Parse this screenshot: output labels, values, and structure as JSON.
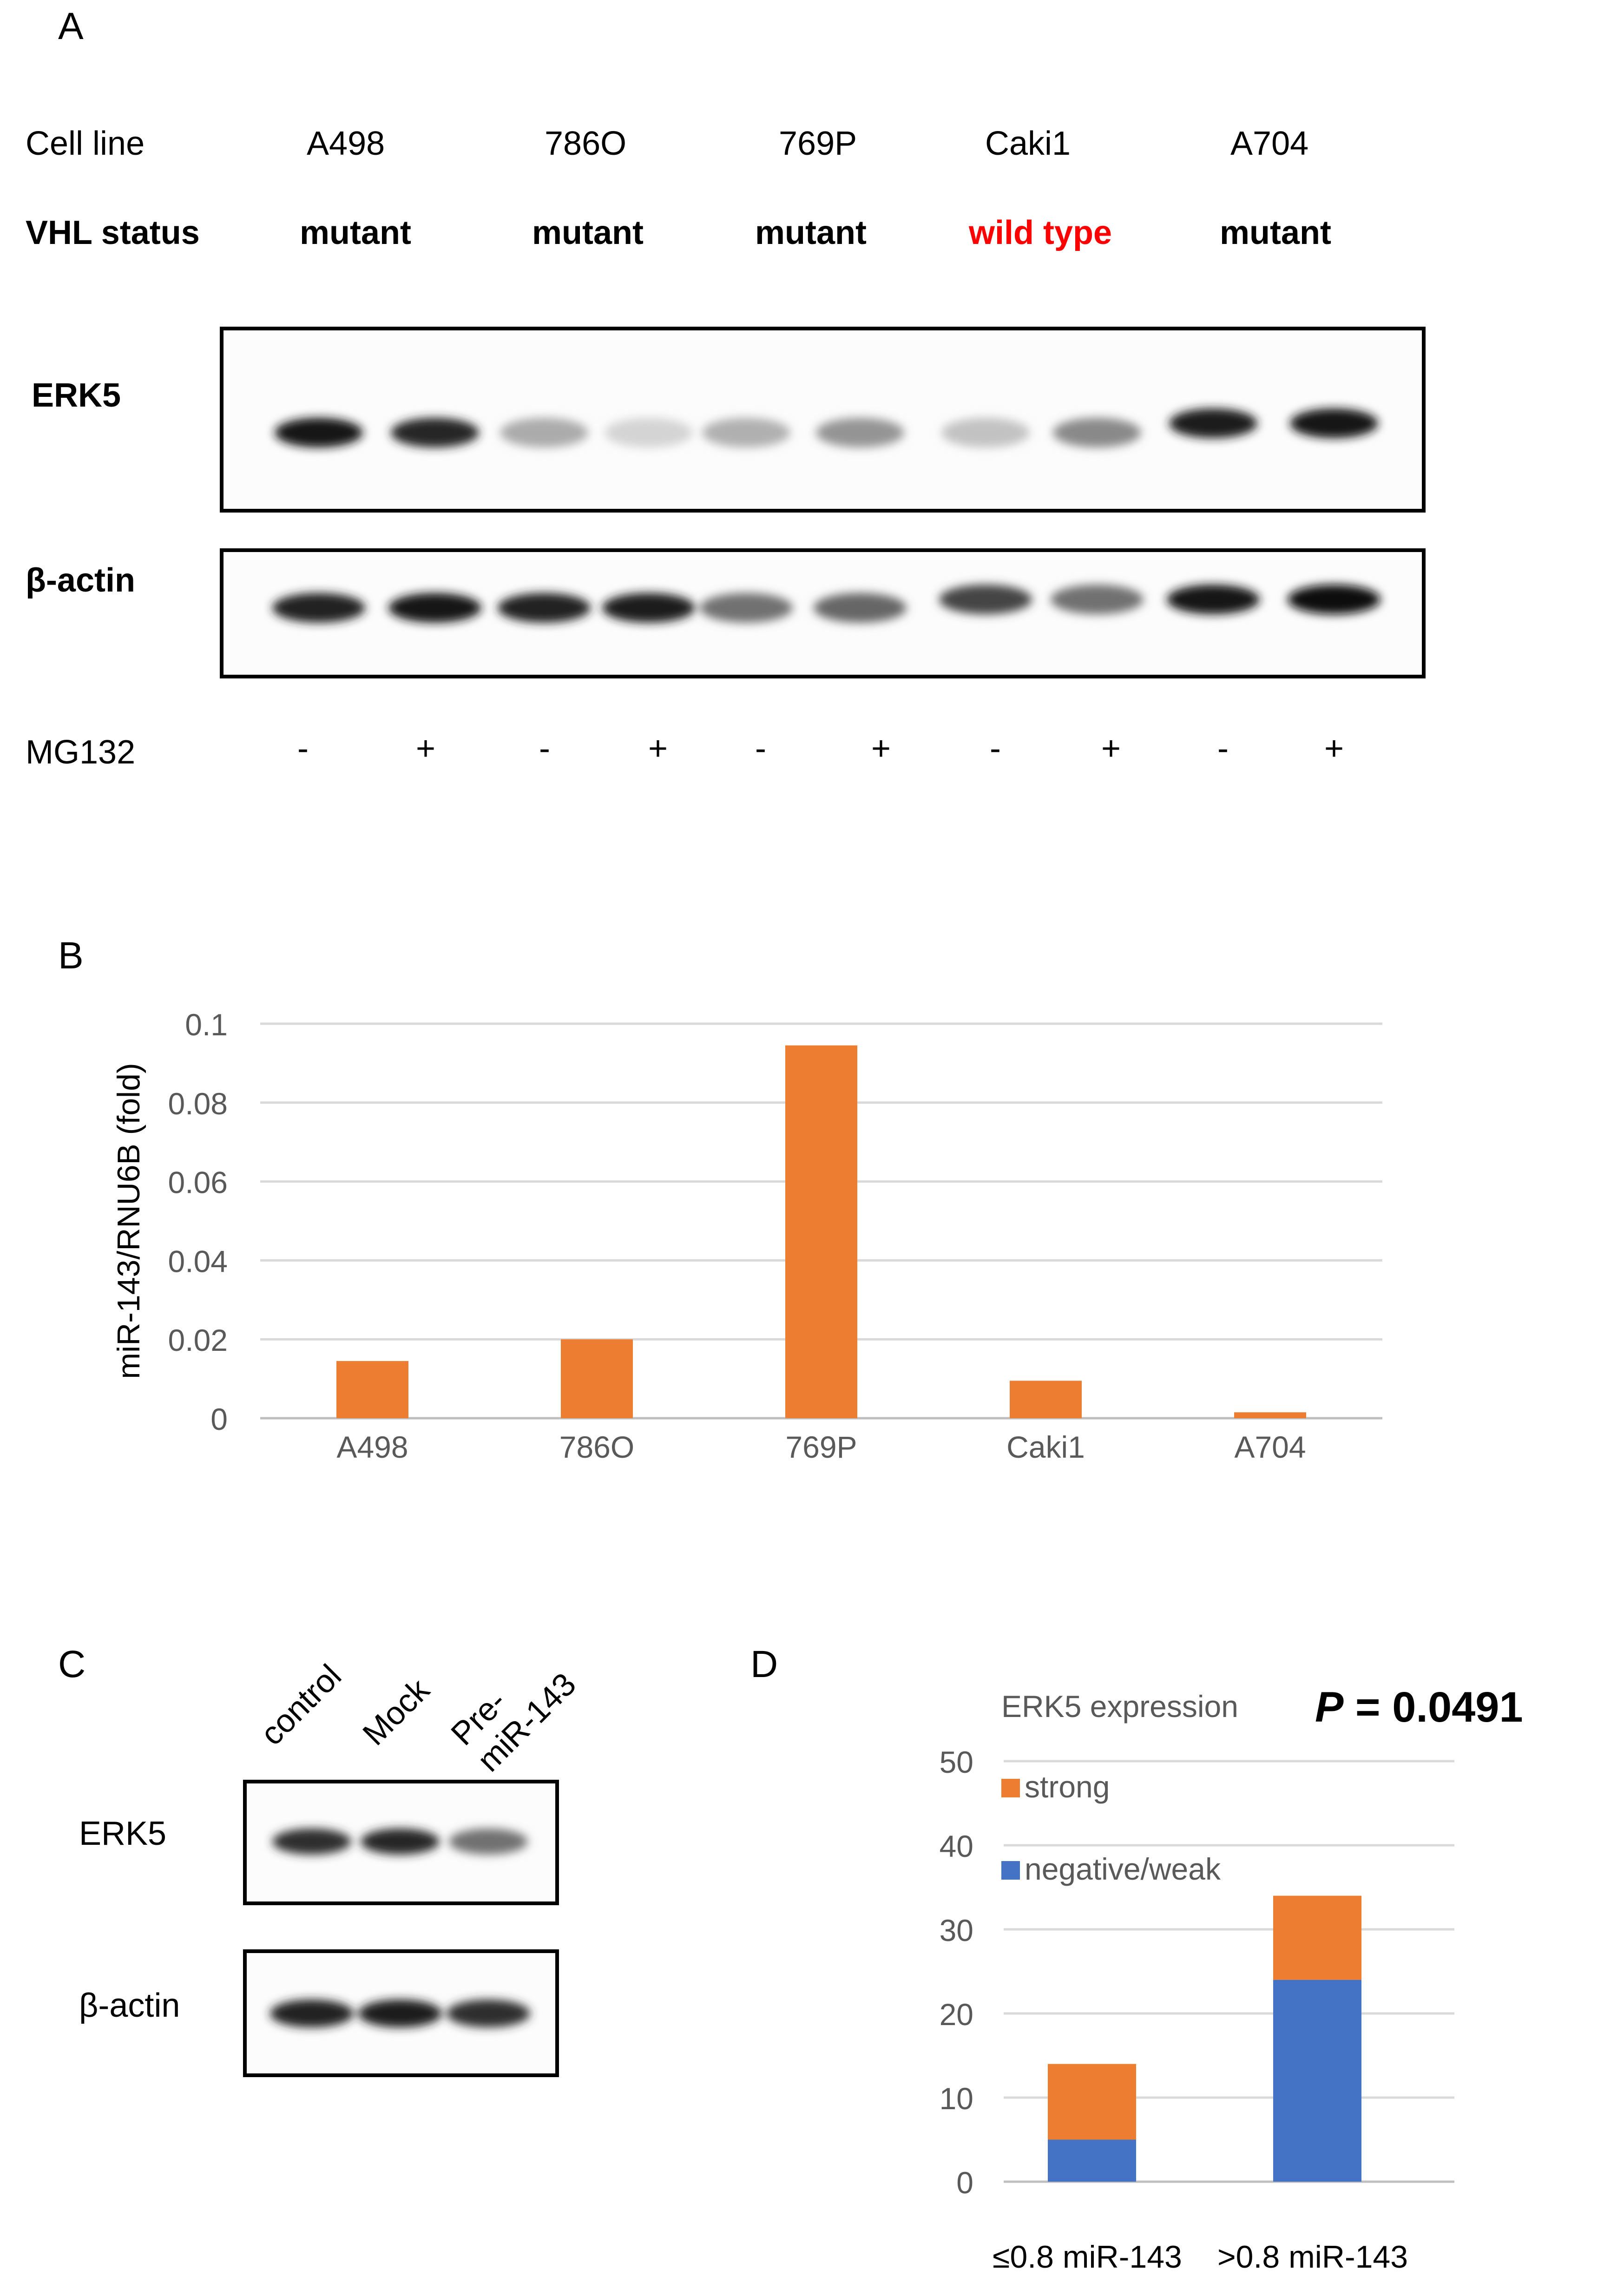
{
  "panel_a": {
    "letter": "A",
    "cell_line_label": "Cell line",
    "vhl_label": "VHL status",
    "cell_lines": [
      "A498",
      "786O",
      "769P",
      "Caki1",
      "A704"
    ],
    "vhl_status": [
      "mutant",
      "mutant",
      "mutant",
      "wild type",
      "mutant"
    ],
    "wild_type_color": "#ff0000",
    "blot_labels": {
      "erk5": "ERK5",
      "actin": "β-actin"
    },
    "mg132_label": "MG132",
    "mg132_signs": [
      "-",
      "+",
      "-",
      "+",
      "-",
      "+",
      "-",
      "+",
      "-",
      "+"
    ],
    "erk5_band_intensity": [
      0.95,
      0.88,
      0.3,
      0.12,
      0.28,
      0.4,
      0.2,
      0.45,
      0.92,
      0.95
    ],
    "actin_band_intensity": [
      0.9,
      0.95,
      0.9,
      0.92,
      0.55,
      0.6,
      0.75,
      0.55,
      0.95,
      0.98
    ]
  },
  "panel_c": {
    "letter": "C",
    "lanes": [
      "control",
      "Mock",
      "Pre-\nmiR-143"
    ],
    "blot_labels": {
      "erk5": "ERK5",
      "actin": "β-actin"
    },
    "erk5_band_intensity": [
      0.85,
      0.88,
      0.55
    ],
    "actin_band_intensity": [
      0.9,
      0.92,
      0.85
    ]
  },
  "chart_data": [
    {
      "panel": "B",
      "type": "bar",
      "categories": [
        "A498",
        "786O",
        "769P",
        "Caki1",
        "A704"
      ],
      "values": [
        0.0145,
        0.02,
        0.0945,
        0.0095,
        0.0015
      ],
      "ylabel": "miR-143/RNU6B (fold)",
      "xlabel": "",
      "ylim": [
        0,
        0.1
      ],
      "yticks": [
        "0",
        "0.02",
        "0.04",
        "0.06",
        "0.08",
        "0.1"
      ],
      "grid": true,
      "color": "#ed7d31"
    },
    {
      "panel": "D",
      "type": "bar",
      "stacked": true,
      "categories": [
        "≤0.8 miR-143",
        ">0.8 miR-143"
      ],
      "series": [
        {
          "name": "negative/weak",
          "values": [
            5,
            24
          ],
          "color": "#4472c4"
        },
        {
          "name": "strong",
          "values": [
            9,
            10
          ],
          "color": "#ed7d31"
        }
      ],
      "legend_title": "ERK5 expression",
      "annotation_prefix": "P",
      "annotation_value": " = 0.0491",
      "ylim": [
        0,
        50
      ],
      "yticks": [
        "0",
        "10",
        "20",
        "30",
        "40",
        "50"
      ],
      "grid": true,
      "legend": "top-left"
    }
  ]
}
